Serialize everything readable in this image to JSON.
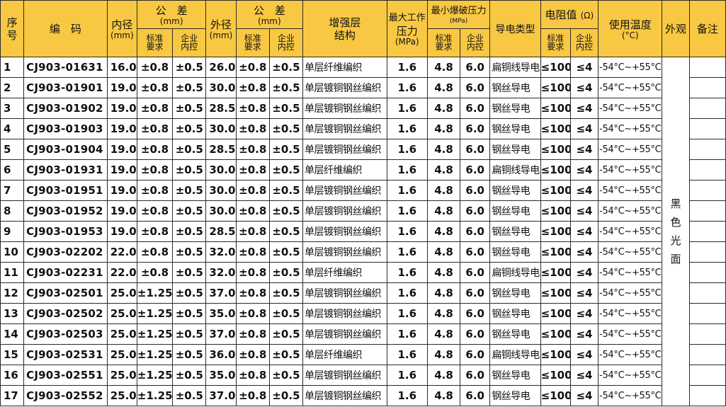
{
  "header": {
    "seq": "序号",
    "code": "编　码",
    "inner_dia": "内径",
    "inner_unit": "(mm)",
    "tol1": "公　差",
    "tol1_unit": "(mm)",
    "std_req_1": "标准要求",
    "ent_ctrl_1": "企业内控",
    "outer_dia": "外径",
    "outer_unit": "(mm)",
    "tol2": "公　差",
    "tol2_unit": "(mm)",
    "std_req_2": "标准要求",
    "ent_ctrl_2": "企业内控",
    "reinforce_1": "增强层",
    "reinforce_2": "结构",
    "max_work_1": "最大工作",
    "max_work_2": "压力",
    "max_work_unit": "(MPa)",
    "min_burst": "最小爆破压力",
    "min_burst_unit": "(MPa)",
    "std_req_3": "标准要求",
    "ent_ctrl_3": "企业内控",
    "conductor": "导电类型",
    "resistance": "电阻值",
    "resistance_unit": "(Ω)",
    "std_req_4": "标准要求",
    "ent_ctrl_4": "企业内控",
    "temp": "使用温度",
    "temp_unit": "(°C)",
    "appearance": "外观",
    "remark": "备注"
  },
  "appearance_value": "黑色光面",
  "rows": [
    {
      "no": "1",
      "code": "CJ903-01631",
      "id": "16.0",
      "tid_s": "±0.8",
      "tid_e": "±0.5",
      "od": "26.0",
      "tod_s": "±0.8",
      "tod_e": "±0.5",
      "layer": "单层纤维编织",
      "mwp": "1.6",
      "bp_s": "4.8",
      "bp_e": "6.0",
      "cond": "扁铜线导电",
      "r_s": "≤100",
      "r_e": "≤4",
      "temp": "-54°C~+55°C",
      "remark": ""
    },
    {
      "no": "2",
      "code": "CJ903-01901",
      "id": "19.0",
      "tid_s": "±0.8",
      "tid_e": "±0.5",
      "od": "30.0",
      "tod_s": "±0.8",
      "tod_e": "±0.5",
      "layer": "单层镀铜钢丝编织",
      "mwp": "1.6",
      "bp_s": "4.8",
      "bp_e": "6.0",
      "cond": "钢丝导电",
      "r_s": "≤100",
      "r_e": "≤4",
      "temp": "-54°C~+55°C",
      "remark": ""
    },
    {
      "no": "3",
      "code": "CJ903-01902",
      "id": "19.0",
      "tid_s": "±0.8",
      "tid_e": "±0.5",
      "od": "28.5",
      "tod_s": "±0.8",
      "tod_e": "±0.5",
      "layer": "单层镀铜钢丝编织",
      "mwp": "1.6",
      "bp_s": "4.8",
      "bp_e": "6.0",
      "cond": "钢丝导电",
      "r_s": "≤100",
      "r_e": "≤4",
      "temp": "-54°C~+55°C",
      "remark": ""
    },
    {
      "no": "4",
      "code": "CJ903-01903",
      "id": "19.0",
      "tid_s": "±0.8",
      "tid_e": "±0.5",
      "od": "30.0",
      "tod_s": "±0.8",
      "tod_e": "±0.5",
      "layer": "单层镀铜钢丝编织",
      "mwp": "1.6",
      "bp_s": "4.8",
      "bp_e": "6.0",
      "cond": "钢丝导电",
      "r_s": "≤100",
      "r_e": "≤4",
      "temp": "-54°C~+55°C",
      "remark": ""
    },
    {
      "no": "5",
      "code": "CJ903-01904",
      "id": "19.0",
      "tid_s": "±0.8",
      "tid_e": "±0.5",
      "od": "28.5",
      "tod_s": "±0.8",
      "tod_e": "±0.5",
      "layer": "单层镀铜钢丝编织",
      "mwp": "1.6",
      "bp_s": "4.8",
      "bp_e": "6.0",
      "cond": "钢丝导电",
      "r_s": "≤100",
      "r_e": "≤4",
      "temp": "-54°C~+55°C",
      "remark": ""
    },
    {
      "no": "6",
      "code": "CJ903-01931",
      "id": "19.0",
      "tid_s": "±0.8",
      "tid_e": "±0.5",
      "od": "30.0",
      "tod_s": "±0.8",
      "tod_e": "±0.5",
      "layer": "单层纤维编织",
      "mwp": "1.6",
      "bp_s": "4.8",
      "bp_e": "6.0",
      "cond": "扁铜线导电",
      "r_s": "≤100",
      "r_e": "≤4",
      "temp": "-54°C~+55°C",
      "remark": ""
    },
    {
      "no": "7",
      "code": "CJ903-01951",
      "id": "19.0",
      "tid_s": "±0.8",
      "tid_e": "±0.5",
      "od": "30.0",
      "tod_s": "±0.8",
      "tod_e": "±0.5",
      "layer": "单层镀铜钢丝编织",
      "mwp": "1.6",
      "bp_s": "4.8",
      "bp_e": "6.0",
      "cond": "钢丝导电",
      "r_s": "≤100",
      "r_e": "≤4",
      "temp": "-54°C~+55°C",
      "remark": ""
    },
    {
      "no": "8",
      "code": "CJ903-01952",
      "id": "19.0",
      "tid_s": "±0.8",
      "tid_e": "±0.5",
      "od": "30.0",
      "tod_s": "±0.8",
      "tod_e": "±0.5",
      "layer": "单层镀铜钢丝编织",
      "mwp": "1.6",
      "bp_s": "4.8",
      "bp_e": "6.0",
      "cond": "钢丝导电",
      "r_s": "≤100",
      "r_e": "≤4",
      "temp": "-54°C~+55°C",
      "remark": ""
    },
    {
      "no": "9",
      "code": "CJ903-01953",
      "id": "19.0",
      "tid_s": "±0.8",
      "tid_e": "±0.5",
      "od": "28.5",
      "tod_s": "±0.8",
      "tod_e": "±0.5",
      "layer": "单层镀铜钢丝编织",
      "mwp": "1.6",
      "bp_s": "4.8",
      "bp_e": "6.0",
      "cond": "钢丝导电",
      "r_s": "≤100",
      "r_e": "≤4",
      "temp": "-54°C~+55°C",
      "remark": ""
    },
    {
      "no": "10",
      "code": "CJ903-02202",
      "id": "22.0",
      "tid_s": "±0.8",
      "tid_e": "±0.5",
      "od": "32.0",
      "tod_s": "±0.8",
      "tod_e": "±0.5",
      "layer": "单层镀铜钢丝编织",
      "mwp": "1.6",
      "bp_s": "4.8",
      "bp_e": "6.0",
      "cond": "钢丝导电",
      "r_s": "≤100",
      "r_e": "≤4",
      "temp": "-54°C~+55°C",
      "remark": ""
    },
    {
      "no": "11",
      "code": "CJ903-02231",
      "id": "22.0",
      "tid_s": "±0.8",
      "tid_e": "±0.5",
      "od": "32.0",
      "tod_s": "±0.8",
      "tod_e": "±0.5",
      "layer": "单层纤维编织",
      "mwp": "1.6",
      "bp_s": "4.8",
      "bp_e": "6.0",
      "cond": "扁铜线导电",
      "r_s": "≤100",
      "r_e": "≤4",
      "temp": "-54°C~+55°C",
      "remark": ""
    },
    {
      "no": "12",
      "code": "CJ903-02501",
      "id": "25.0",
      "tid_s": "±1.25",
      "tid_e": "±0.5",
      "od": "37.0",
      "tod_s": "±0.8",
      "tod_e": "±0.5",
      "layer": "单层镀铜钢丝编织",
      "mwp": "1.6",
      "bp_s": "4.8",
      "bp_e": "6.0",
      "cond": "钢丝导电",
      "r_s": "≤100",
      "r_e": "≤4",
      "temp": "-54°C~+55°C",
      "remark": ""
    },
    {
      "no": "13",
      "code": "CJ903-02502",
      "id": "25.0",
      "tid_s": "±1.25",
      "tid_e": "±0.5",
      "od": "35.0",
      "tod_s": "±0.8",
      "tod_e": "±0.5",
      "layer": "单层镀铜钢丝编织",
      "mwp": "1.6",
      "bp_s": "4.8",
      "bp_e": "6.0",
      "cond": "钢丝导电",
      "r_s": "≤100",
      "r_e": "≤4",
      "temp": "-54°C~+55°C",
      "remark": ""
    },
    {
      "no": "14",
      "code": "CJ903-02503",
      "id": "25.0",
      "tid_s": "±1.25",
      "tid_e": "±0.5",
      "od": "37.0",
      "tod_s": "±0.8",
      "tod_e": "±0.5",
      "layer": "单层镀铜钢丝编织",
      "mwp": "1.6",
      "bp_s": "4.8",
      "bp_e": "6.0",
      "cond": "钢丝导电",
      "r_s": "≤100",
      "r_e": "≤4",
      "temp": "-54°C~+55°C",
      "remark": ""
    },
    {
      "no": "15",
      "code": "CJ903-02531",
      "id": "25.0",
      "tid_s": "±1.25",
      "tid_e": "±0.5",
      "od": "36.0",
      "tod_s": "±0.8",
      "tod_e": "±0.5",
      "layer": "单层纤维编织",
      "mwp": "1.6",
      "bp_s": "4.8",
      "bp_e": "6.0",
      "cond": "扁铜线导电",
      "r_s": "≤100",
      "r_e": "≤4",
      "temp": "-54°C~+55°C",
      "remark": ""
    },
    {
      "no": "16",
      "code": "CJ903-02551",
      "id": "25.0",
      "tid_s": "±1.25",
      "tid_e": "±0.5",
      "od": "35.0",
      "tod_s": "±0.8",
      "tod_e": "±0.5",
      "layer": "单层镀铜钢丝编织",
      "mwp": "1.6",
      "bp_s": "4.8",
      "bp_e": "6.0",
      "cond": "钢丝导电",
      "r_s": "≤100",
      "r_e": "≤4",
      "temp": "-54°C~+55°C",
      "remark": ""
    },
    {
      "no": "17",
      "code": "CJ903-02552",
      "id": "25.0",
      "tid_s": "±1.25",
      "tid_e": "±0.5",
      "od": "37.0",
      "tod_s": "±0.8",
      "tod_e": "±0.5",
      "layer": "单层镀铜钢丝编织",
      "mwp": "1.6",
      "bp_s": "4.8",
      "bp_e": "6.0",
      "cond": "钢丝导电",
      "r_s": "≤100",
      "r_e": "≤4",
      "temp": "-54°C~+55°C",
      "remark": ""
    }
  ]
}
